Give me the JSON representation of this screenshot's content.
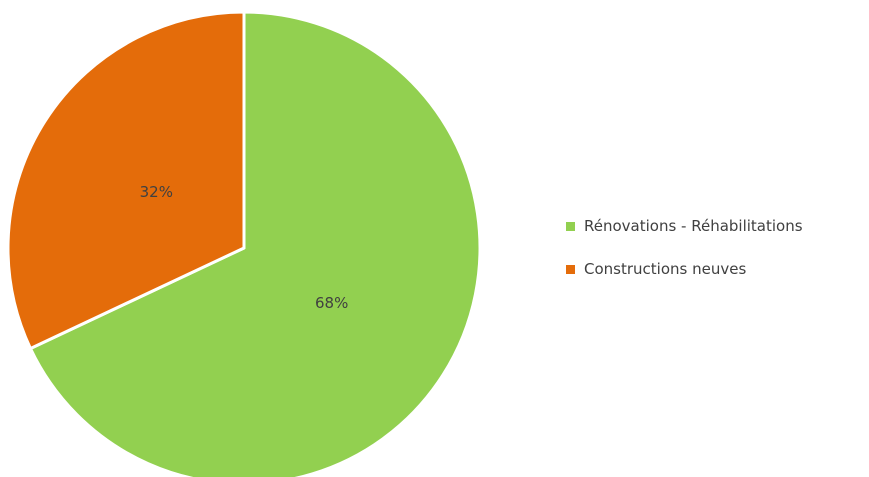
{
  "chart_data": {
    "type": "pie",
    "title": "",
    "categories": [
      "Rénovations - Réhabilitations",
      "Constructions neuves"
    ],
    "values": [
      68,
      32
    ],
    "data_labels": [
      "68%",
      "32%"
    ],
    "colors": [
      "#92D050",
      "#E46C0A"
    ],
    "legend_position": "right"
  },
  "legend": {
    "items": [
      {
        "label": "Rénovations - Réhabilitations",
        "color": "#92D050"
      },
      {
        "label": "Constructions neuves",
        "color": "#E46C0A"
      }
    ]
  }
}
